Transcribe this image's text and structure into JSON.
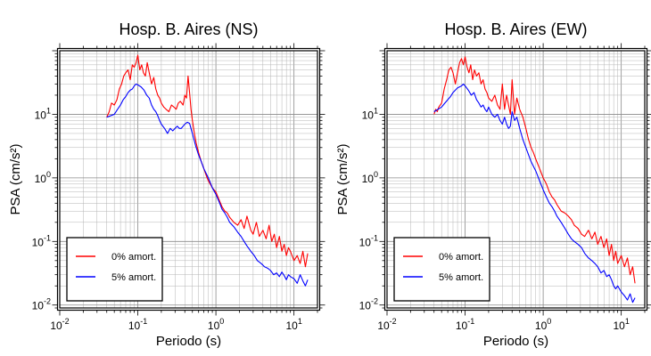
{
  "chart_data": [
    {
      "type": "line",
      "title": "Hosp. B. Aires (NS)",
      "xlabel": "Periodo (s)",
      "ylabel": "PSA (cm/s²)",
      "xscale": "log",
      "yscale": "log",
      "xlim": [
        0.01,
        20
      ],
      "ylim": [
        0.009,
        100
      ],
      "grid": true,
      "legend_position": "bottom-left",
      "xticks": [
        {
          "value": 0.01,
          "base": "10",
          "exp": "-2"
        },
        {
          "value": 0.1,
          "base": "10",
          "exp": "-1"
        },
        {
          "value": 1,
          "base": "10",
          "exp": "0"
        },
        {
          "value": 10,
          "base": "10",
          "exp": "1"
        }
      ],
      "yticks": [
        {
          "value": 0.01,
          "base": "10",
          "exp": "-2"
        },
        {
          "value": 0.1,
          "base": "10",
          "exp": "-1"
        },
        {
          "value": 1,
          "base": "10",
          "exp": "0"
        },
        {
          "value": 10,
          "base": "10",
          "exp": "1"
        }
      ],
      "series": [
        {
          "name": "0% amort.",
          "color": "#ff0000",
          "x": [
            0.04,
            0.043,
            0.046,
            0.05,
            0.054,
            0.058,
            0.062,
            0.066,
            0.07,
            0.075,
            0.08,
            0.085,
            0.09,
            0.095,
            0.1,
            0.106,
            0.112,
            0.118,
            0.125,
            0.132,
            0.14,
            0.15,
            0.16,
            0.17,
            0.18,
            0.19,
            0.2,
            0.215,
            0.23,
            0.25,
            0.27,
            0.29,
            0.31,
            0.33,
            0.35,
            0.38,
            0.4,
            0.42,
            0.44,
            0.46,
            0.48,
            0.5,
            0.53,
            0.56,
            0.6,
            0.65,
            0.7,
            0.75,
            0.8,
            0.9,
            1.0,
            1.1,
            1.2,
            1.3,
            1.4,
            1.5,
            1.7,
            1.9,
            2.1,
            2.3,
            2.5,
            2.8,
            3.0,
            3.3,
            3.6,
            4.0,
            4.4,
            4.8,
            5.2,
            5.6,
            6.0,
            6.5,
            7.0,
            7.5,
            8.0,
            8.5,
            9.0,
            10,
            11,
            12,
            13,
            14,
            15
          ],
          "y": [
            9,
            11,
            15,
            14,
            17,
            25,
            30,
            40,
            45,
            50,
            35,
            60,
            55,
            65,
            85,
            50,
            60,
            45,
            40,
            65,
            45,
            30,
            38,
            25,
            20,
            18,
            15,
            13,
            12,
            11,
            14,
            13,
            12,
            15,
            16,
            14,
            20,
            18,
            40,
            22,
            12,
            8,
            5,
            3.5,
            2.5,
            1.8,
            1.4,
            1.1,
            0.9,
            0.7,
            0.6,
            0.45,
            0.35,
            0.3,
            0.28,
            0.24,
            0.2,
            0.18,
            0.22,
            0.16,
            0.25,
            0.15,
            0.13,
            0.2,
            0.12,
            0.15,
            0.11,
            0.18,
            0.1,
            0.13,
            0.08,
            0.12,
            0.07,
            0.09,
            0.06,
            0.08,
            0.07,
            0.05,
            0.06,
            0.045,
            0.07,
            0.04,
            0.065
          ]
        },
        {
          "name": "5% amort.",
          "color": "#0000ff",
          "x": [
            0.04,
            0.045,
            0.05,
            0.055,
            0.06,
            0.065,
            0.07,
            0.075,
            0.08,
            0.085,
            0.09,
            0.095,
            0.1,
            0.11,
            0.12,
            0.13,
            0.14,
            0.15,
            0.16,
            0.17,
            0.18,
            0.19,
            0.2,
            0.22,
            0.24,
            0.26,
            0.28,
            0.3,
            0.32,
            0.34,
            0.36,
            0.38,
            0.4,
            0.43,
            0.46,
            0.5,
            0.55,
            0.6,
            0.65,
            0.7,
            0.8,
            0.9,
            1.0,
            1.1,
            1.2,
            1.3,
            1.4,
            1.5,
            1.7,
            1.9,
            2.1,
            2.3,
            2.5,
            2.8,
            3.1,
            3.4,
            3.8,
            4.2,
            4.6,
            5.0,
            5.5,
            6.0,
            6.5,
            7.0,
            7.5,
            8.0,
            8.5,
            9.0,
            10,
            11,
            12,
            13,
            14,
            15
          ],
          "y": [
            9,
            9.5,
            10,
            12,
            14,
            17,
            19,
            22,
            24,
            25,
            28,
            30,
            29,
            27,
            24,
            20,
            18,
            14,
            12,
            11,
            9.5,
            8,
            7,
            6,
            5,
            6,
            5.5,
            6,
            6.5,
            6,
            6,
            6.5,
            7,
            7.5,
            7.2,
            5,
            3.2,
            2.3,
            1.8,
            1.4,
            1.0,
            0.7,
            0.55,
            0.42,
            0.32,
            0.28,
            0.24,
            0.2,
            0.17,
            0.14,
            0.12,
            0.1,
            0.085,
            0.07,
            0.06,
            0.05,
            0.045,
            0.04,
            0.038,
            0.035,
            0.03,
            0.032,
            0.028,
            0.033,
            0.029,
            0.025,
            0.03,
            0.028,
            0.026,
            0.022,
            0.03,
            0.024,
            0.02,
            0.025
          ]
        }
      ]
    },
    {
      "type": "line",
      "title": "Hosp. B. Aires (EW)",
      "xlabel": "Periodo (s)",
      "ylabel": "PSA (cm/s²)",
      "xscale": "log",
      "yscale": "log",
      "xlim": [
        0.01,
        20
      ],
      "ylim": [
        0.009,
        100
      ],
      "grid": true,
      "legend_position": "bottom-left",
      "xticks": [
        {
          "value": 0.01,
          "base": "10",
          "exp": "-2"
        },
        {
          "value": 0.1,
          "base": "10",
          "exp": "-1"
        },
        {
          "value": 1,
          "base": "10",
          "exp": "0"
        },
        {
          "value": 10,
          "base": "10",
          "exp": "1"
        }
      ],
      "yticks": [
        {
          "value": 0.01,
          "base": "10",
          "exp": "-2"
        },
        {
          "value": 0.1,
          "base": "10",
          "exp": "-1"
        },
        {
          "value": 1,
          "base": "10",
          "exp": "0"
        },
        {
          "value": 10,
          "base": "10",
          "exp": "1"
        }
      ],
      "series": [
        {
          "name": "0% amort.",
          "color": "#ff0000",
          "x": [
            0.04,
            0.042,
            0.044,
            0.046,
            0.05,
            0.054,
            0.058,
            0.062,
            0.066,
            0.07,
            0.075,
            0.08,
            0.085,
            0.09,
            0.095,
            0.1,
            0.106,
            0.112,
            0.118,
            0.125,
            0.132,
            0.14,
            0.15,
            0.16,
            0.17,
            0.18,
            0.19,
            0.2,
            0.22,
            0.24,
            0.26,
            0.28,
            0.3,
            0.32,
            0.34,
            0.36,
            0.38,
            0.4,
            0.43,
            0.46,
            0.5,
            0.55,
            0.6,
            0.65,
            0.7,
            0.75,
            0.8,
            0.9,
            1.0,
            1.1,
            1.2,
            1.3,
            1.4,
            1.5,
            1.7,
            1.9,
            2.1,
            2.3,
            2.5,
            2.8,
            3.1,
            3.4,
            3.8,
            4.2,
            4.6,
            5.0,
            5.5,
            6.0,
            6.5,
            7.0,
            7.5,
            8.0,
            8.5,
            9.0,
            10,
            11,
            12,
            13,
            14,
            15
          ],
          "y": [
            10,
            12,
            11,
            13,
            15,
            25,
            35,
            50,
            55,
            45,
            30,
            45,
            65,
            75,
            60,
            80,
            55,
            45,
            60,
            35,
            50,
            40,
            45,
            30,
            35,
            25,
            22,
            18,
            16,
            20,
            14,
            12,
            30,
            12,
            20,
            14,
            10,
            35,
            10,
            18,
            12,
            9,
            6,
            4,
            3,
            2.5,
            2,
            1.4,
            1.0,
            0.8,
            0.6,
            0.5,
            0.45,
            0.38,
            0.3,
            0.28,
            0.25,
            0.22,
            0.18,
            0.16,
            0.13,
            0.12,
            0.15,
            0.11,
            0.14,
            0.09,
            0.12,
            0.08,
            0.11,
            0.06,
            0.09,
            0.05,
            0.07,
            0.045,
            0.06,
            0.04,
            0.055,
            0.03,
            0.04,
            0.022
          ]
        },
        {
          "name": "5% amort.",
          "color": "#0000ff",
          "x": [
            0.04,
            0.045,
            0.05,
            0.055,
            0.06,
            0.065,
            0.07,
            0.075,
            0.08,
            0.085,
            0.09,
            0.095,
            0.1,
            0.11,
            0.12,
            0.13,
            0.14,
            0.15,
            0.16,
            0.17,
            0.18,
            0.19,
            0.2,
            0.22,
            0.24,
            0.26,
            0.28,
            0.3,
            0.32,
            0.34,
            0.36,
            0.38,
            0.4,
            0.43,
            0.46,
            0.5,
            0.55,
            0.6,
            0.65,
            0.7,
            0.8,
            0.9,
            1.0,
            1.1,
            1.2,
            1.3,
            1.4,
            1.5,
            1.7,
            1.9,
            2.1,
            2.3,
            2.5,
            2.8,
            3.1,
            3.4,
            3.8,
            4.2,
            4.6,
            5.0,
            5.5,
            6.0,
            6.5,
            7.0,
            7.5,
            8.0,
            8.5,
            9.0,
            10,
            11,
            12,
            13,
            14,
            15
          ],
          "y": [
            11,
            12,
            13,
            15,
            17,
            19,
            22,
            24,
            26,
            27,
            28,
            30,
            28,
            24,
            20,
            22,
            17,
            15,
            13,
            14,
            12,
            11,
            13,
            10,
            9,
            10,
            8,
            7,
            9,
            7,
            6,
            6.5,
            11,
            8,
            9,
            6,
            4,
            3,
            2.3,
            1.8,
            1.3,
            0.9,
            0.65,
            0.5,
            0.4,
            0.35,
            0.3,
            0.25,
            0.2,
            0.16,
            0.13,
            0.11,
            0.1,
            0.09,
            0.08,
            0.065,
            0.055,
            0.05,
            0.045,
            0.04,
            0.032,
            0.035,
            0.028,
            0.03,
            0.025,
            0.02,
            0.018,
            0.02,
            0.016,
            0.014,
            0.012,
            0.015,
            0.011,
            0.013
          ]
        }
      ]
    }
  ]
}
